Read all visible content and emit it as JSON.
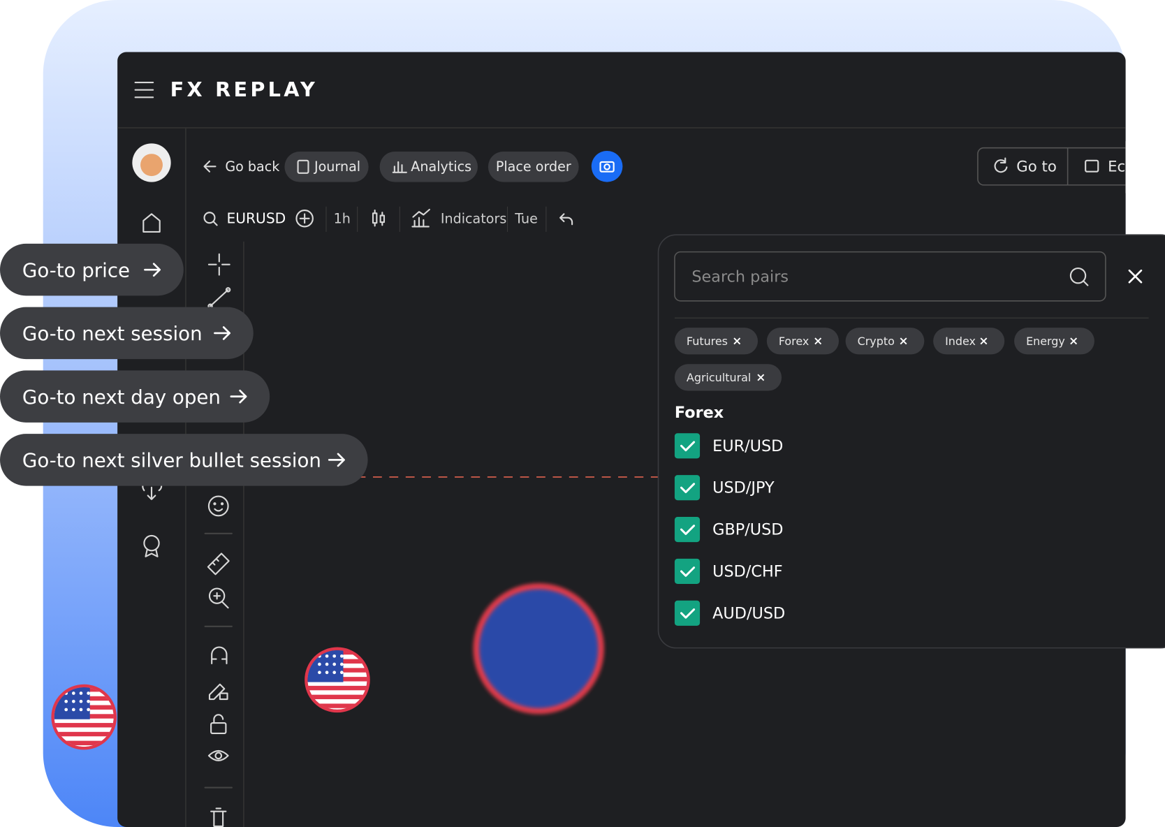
{
  "header": {
    "logo": "FX REPLAY"
  },
  "toolbar": {
    "back": "Go back",
    "journal": "Journal",
    "analytics": "Analytics",
    "place_order": "Place order",
    "goto": "Go to",
    "eco": "Eco"
  },
  "chart_toolbar": {
    "symbol": "EURUSD",
    "timeframe": "1h",
    "indicators": "Indicators",
    "day": "Tue"
  },
  "callouts": [
    "Go-to price",
    "Go-to next session",
    "Go-to next day open",
    "Go-to next silver bullet session"
  ],
  "search_panel": {
    "placeholder": "Search pairs",
    "filters": [
      "Futures",
      "Forex",
      "Crypto",
      "Index",
      "Energy",
      "Agricultural"
    ],
    "section": "Forex",
    "pairs": [
      "EUR/USD",
      "USD/JPY",
      "GBP/USD",
      "USD/CHF",
      "AUD/USD"
    ]
  }
}
